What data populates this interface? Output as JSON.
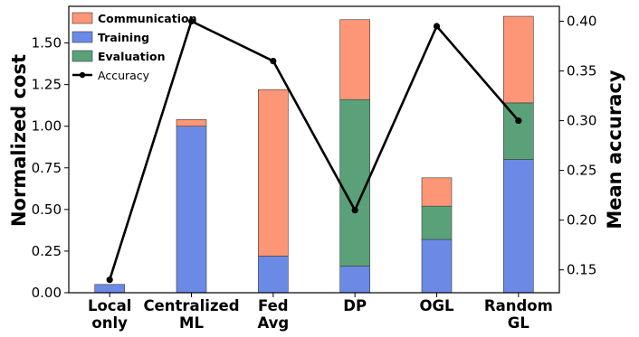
{
  "chart_data": {
    "type": "bar",
    "stacked": true,
    "categories": [
      [
        "Local",
        "only"
      ],
      [
        "Centralized",
        "ML"
      ],
      [
        "Fed",
        "Avg"
      ],
      [
        "DP"
      ],
      [
        "OGL"
      ],
      [
        "Random",
        "GL"
      ]
    ],
    "series": [
      {
        "name": "Training",
        "color": "#6b8ae6",
        "values": [
          0.05,
          1.0,
          0.22,
          0.16,
          0.32,
          0.8
        ]
      },
      {
        "name": "Evaluation",
        "color": "#5aa17a",
        "values": [
          0.0,
          0.0,
          0.0,
          1.0,
          0.2,
          0.34
        ]
      },
      {
        "name": "Communication",
        "color": "#fc9676",
        "values": [
          0.0,
          0.04,
          1.0,
          0.48,
          0.17,
          0.52
        ]
      }
    ],
    "line": {
      "name": "Accuracy",
      "color": "#000000",
      "values": [
        0.14,
        0.4,
        0.36,
        0.21,
        0.395,
        0.3
      ]
    },
    "ylabel": "Normalized cost",
    "y2label": "Mean accuracy",
    "ylim": [
      0,
      1.72
    ],
    "y2lim": [
      0.127,
      0.415
    ],
    "yticks": [
      "0.00",
      "0.25",
      "0.50",
      "0.75",
      "1.00",
      "1.25",
      "1.50"
    ],
    "y2ticks": [
      "0.15",
      "0.20",
      "0.25",
      "0.30",
      "0.35",
      "0.40"
    ],
    "legend": {
      "position": "top-left",
      "entries": [
        {
          "label": "Communication",
          "color": "#fc9676",
          "kind": "patch"
        },
        {
          "label": "Training",
          "color": "#6b8ae6",
          "kind": "patch"
        },
        {
          "label": "Evaluation",
          "color": "#5aa17a",
          "kind": "patch"
        },
        {
          "label": "Accuracy",
          "color": "#000000",
          "kind": "line"
        }
      ]
    },
    "grid": false
  }
}
